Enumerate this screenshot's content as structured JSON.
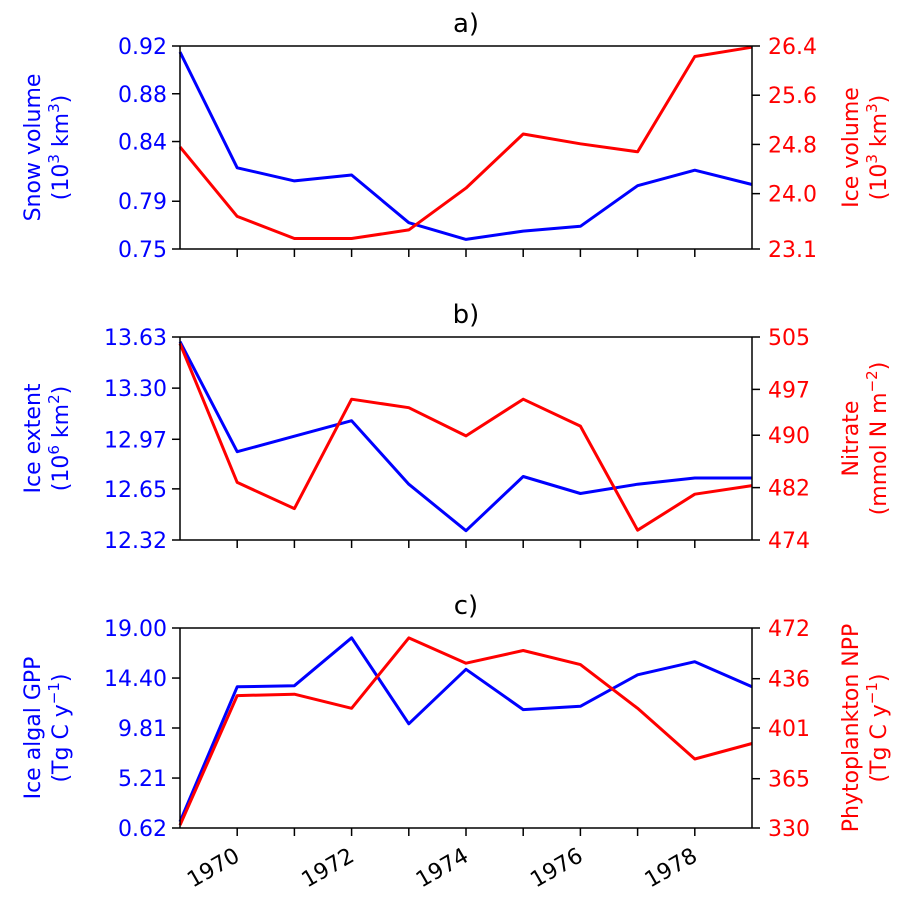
{
  "colors": {
    "left_series": "#0000ff",
    "right_series": "#ff0000",
    "axis": "#000000"
  },
  "x_tick_labels": [
    "1970",
    "1972",
    "1974",
    "1976",
    "1978"
  ],
  "chart_data": [
    {
      "type": "line",
      "title": "a)",
      "x": [
        1969,
        1970,
        1971,
        1972,
        1973,
        1974,
        1975,
        1976,
        1977,
        1978,
        1979
      ],
      "xlim": [
        1969,
        1979
      ],
      "x_ticks": [
        1970,
        1971,
        1972,
        1973,
        1974,
        1975,
        1976,
        1977,
        1978
      ],
      "left_axis": {
        "label_lines": [
          "Snow volume",
          "(10^3 km^3)"
        ],
        "ylim": [
          0.75,
          0.92
        ],
        "tick_values": [
          0.75,
          0.79,
          0.84,
          0.88,
          0.92
        ],
        "tick_labels": [
          "0.75",
          "0.79",
          "0.84",
          "0.88",
          "0.92"
        ],
        "color": "blue"
      },
      "right_axis": {
        "label_lines": [
          "Ice volume",
          "(10^3 km^3)"
        ],
        "ylim": [
          23.1,
          26.4
        ],
        "tick_values": [
          23.1,
          24.0,
          24.8,
          25.6,
          26.4
        ],
        "tick_labels": [
          "23.1",
          "24.0",
          "24.8",
          "25.6",
          "26.4"
        ],
        "color": "red"
      },
      "series": [
        {
          "axis": "left",
          "color": "blue",
          "values": [
            0.915,
            0.818,
            0.807,
            0.812,
            0.772,
            0.758,
            0.765,
            0.769,
            0.803,
            0.816,
            0.804
          ]
        },
        {
          "axis": "right",
          "color": "red",
          "values": [
            24.76,
            23.63,
            23.27,
            23.27,
            23.41,
            24.09,
            24.97,
            24.81,
            24.68,
            26.23,
            26.38
          ]
        }
      ]
    },
    {
      "type": "line",
      "title": "b)",
      "x": [
        1969,
        1970,
        1971,
        1972,
        1973,
        1974,
        1975,
        1976,
        1977,
        1978,
        1979
      ],
      "xlim": [
        1969,
        1979
      ],
      "x_ticks": [
        1970,
        1971,
        1972,
        1973,
        1974,
        1975,
        1976,
        1977,
        1978
      ],
      "left_axis": {
        "label_lines": [
          "Ice extent",
          "(10^6 km^2)"
        ],
        "ylim": [
          12.32,
          13.63
        ],
        "tick_values": [
          12.32,
          12.65,
          12.97,
          13.3,
          13.63
        ],
        "tick_labels": [
          "12.32",
          "12.65",
          "12.97",
          "13.30",
          "13.63"
        ],
        "color": "blue"
      },
      "right_axis": {
        "label_lines": [
          "Nitrate",
          "(mmol N m^-2)"
        ],
        "ylim": [
          474,
          505
        ],
        "tick_values": [
          474,
          482,
          490,
          497,
          505
        ],
        "tick_labels": [
          "474",
          "482",
          "490",
          "497",
          "505"
        ],
        "color": "red"
      },
      "series": [
        {
          "axis": "left",
          "color": "blue",
          "values": [
            13.6,
            12.89,
            12.99,
            13.09,
            12.68,
            12.38,
            12.73,
            12.62,
            12.68,
            12.72,
            12.72
          ]
        },
        {
          "axis": "right",
          "color": "red",
          "values": [
            504,
            482.8,
            478.8,
            495.5,
            494.2,
            489.9,
            495.5,
            491.4,
            475.5,
            481,
            482.3
          ]
        }
      ]
    },
    {
      "type": "line",
      "title": "c)",
      "x": [
        1969,
        1970,
        1971,
        1972,
        1973,
        1974,
        1975,
        1976,
        1977,
        1978,
        1979
      ],
      "xlim": [
        1969,
        1979
      ],
      "x_ticks": [
        1970,
        1971,
        1972,
        1973,
        1974,
        1975,
        1976,
        1977,
        1978
      ],
      "left_axis": {
        "label_lines": [
          "Ice algal GPP",
          "(Tg C y^-1)"
        ],
        "ylim": [
          0.62,
          19.0
        ],
        "tick_values": [
          0.62,
          5.21,
          9.81,
          14.4,
          19.0
        ],
        "tick_labels": [
          "0.62",
          "5.21",
          "9.81",
          "14.40",
          "19.00"
        ],
        "color": "blue"
      },
      "right_axis": {
        "label_lines": [
          "Phytoplankton NPP",
          "(Tg C y^-1)"
        ],
        "ylim": [
          330,
          472
        ],
        "tick_values": [
          330,
          365,
          401,
          436,
          472
        ],
        "tick_labels": [
          "330",
          "365",
          "401",
          "436",
          "472"
        ],
        "color": "red"
      },
      "series": [
        {
          "axis": "left",
          "color": "blue",
          "values": [
            1.2,
            13.6,
            13.7,
            18.1,
            10.2,
            15.2,
            11.5,
            11.8,
            14.7,
            15.9,
            13.6
          ]
        },
        {
          "axis": "right",
          "color": "red",
          "values": [
            332,
            424,
            425,
            415,
            465,
            447,
            456,
            446,
            415,
            379,
            390
          ]
        }
      ]
    }
  ]
}
